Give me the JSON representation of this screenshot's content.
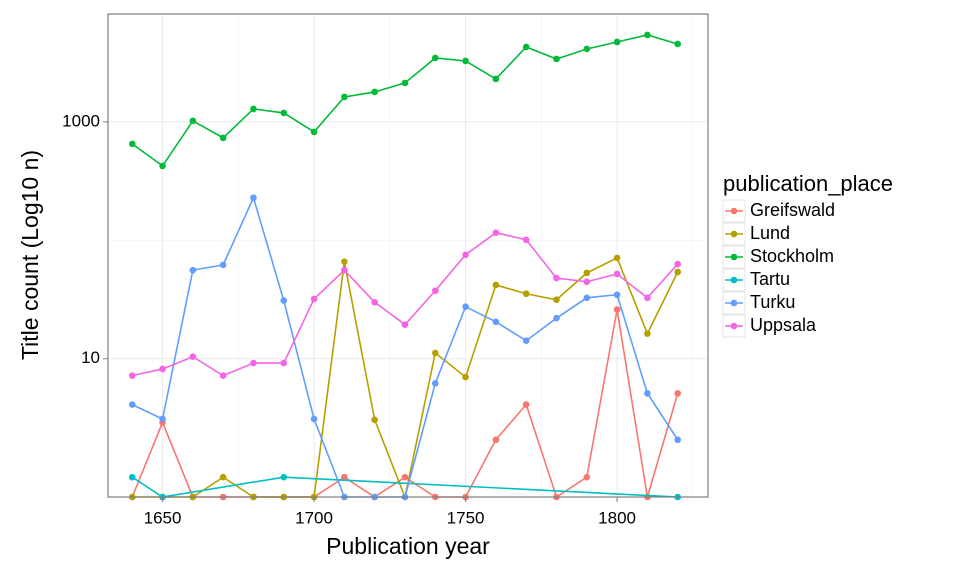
{
  "chart_data": {
    "type": "line",
    "xlabel": "Publication year",
    "ylabel": "Title count (Log10 n)",
    "x": [
      1640,
      1650,
      1660,
      1670,
      1680,
      1690,
      1700,
      1710,
      1720,
      1730,
      1740,
      1750,
      1760,
      1770,
      1780,
      1790,
      1800,
      1810,
      1820
    ],
    "xlim": [
      1632,
      1830
    ],
    "xticks": [
      1650,
      1700,
      1750,
      1800
    ],
    "x_minor_grid": [
      1675,
      1725,
      1775,
      1825
    ],
    "ylim": [
      0.68,
      8150
    ],
    "yticks": [
      10,
      1000
    ],
    "y_minor_grid": [
      100
    ],
    "log_y": true,
    "grid": true,
    "legend_title": "publication_place",
    "legend": "right",
    "series": [
      {
        "name": "Greifswald",
        "color": "#F8766D",
        "values": [
          0.68,
          2.9,
          0.68,
          0.68,
          0.68,
          0.68,
          0.68,
          1,
          0.68,
          1,
          0.68,
          0.68,
          2.07,
          4.1,
          0.68,
          1,
          26,
          0.68,
          5.1
        ]
      },
      {
        "name": "Lund",
        "color": "#B79F00",
        "values": [
          0.68,
          0.68,
          0.68,
          1,
          0.68,
          0.68,
          0.68,
          66,
          3.05,
          0.68,
          11.2,
          7,
          42,
          35.4,
          31.5,
          53,
          71,
          16.3,
          54
        ]
      },
      {
        "name": "Stockholm",
        "color": "#00BA38",
        "values": [
          652,
          425,
          1020,
          733,
          1287,
          1191,
          823,
          1625,
          1790,
          2133,
          3466,
          3270,
          2305,
          4293,
          3400,
          4130,
          4730,
          5420,
          4550
        ]
      },
      {
        "name": "Tartu",
        "color": "#00BFC4",
        "x": [
          1640,
          1650,
          1690,
          1820
        ],
        "values": [
          1,
          0.68,
          1,
          0.68
        ]
      },
      {
        "name": "Turku",
        "color": "#619CFF",
        "values": [
          4.1,
          3.1,
          56,
          62,
          229,
          31,
          3.1,
          0.68,
          0.68,
          0.68,
          6.2,
          27.5,
          20.5,
          14.2,
          22,
          32.7,
          34.7,
          5.1,
          2.07
        ]
      },
      {
        "name": "Uppsala",
        "color": "#F564E3",
        "values": [
          7.2,
          8.2,
          10.4,
          7.2,
          9.2,
          9.2,
          32,
          56,
          30,
          19.4,
          37.5,
          75.5,
          116,
          101,
          48,
          44.7,
          52,
          32.7,
          63
        ]
      }
    ]
  }
}
